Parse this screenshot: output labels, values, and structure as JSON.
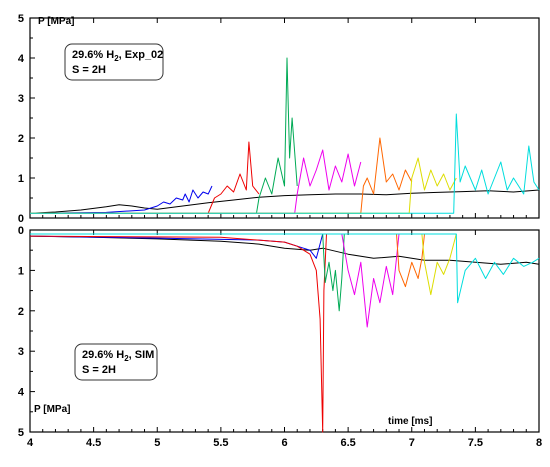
{
  "chart_data": [
    {
      "type": "line",
      "panel": "top",
      "ylabel": "P [MPa]",
      "xlabel": "",
      "xlim": [
        4,
        8
      ],
      "ylim": [
        0,
        5
      ],
      "y_inverted": false,
      "xticks": [
        "4",
        "4.5",
        "5",
        "5.5",
        "6",
        "6.5",
        "7",
        "7.5",
        "8"
      ],
      "yticks": [
        "0",
        "1",
        "2",
        "3",
        "4",
        "5"
      ],
      "annotation": {
        "line1_a": "29.6% H",
        "line1_sub": "2",
        "line1_b": ", Exp_02",
        "line2": "S = 2H"
      },
      "series": [
        {
          "color": "#000000",
          "x": [
            4.0,
            4.2,
            4.4,
            4.6,
            4.7,
            4.8,
            4.9,
            5.0,
            5.2,
            5.4,
            5.6,
            5.8,
            6.0,
            6.2,
            6.4,
            6.6,
            6.8,
            7.0,
            7.2,
            7.4,
            7.6,
            7.8,
            8.0
          ],
          "y": [
            0.12,
            0.15,
            0.2,
            0.28,
            0.33,
            0.3,
            0.25,
            0.22,
            0.3,
            0.38,
            0.45,
            0.52,
            0.56,
            0.58,
            0.6,
            0.6,
            0.58,
            0.62,
            0.64,
            0.66,
            0.68,
            0.65,
            0.7
          ]
        },
        {
          "color": "#0000ee",
          "x": [
            4.0,
            4.6,
            4.9,
            5.0,
            5.05,
            5.1,
            5.15,
            5.2,
            5.22,
            5.25,
            5.28,
            5.32,
            5.36,
            5.4,
            5.43
          ],
          "y": [
            0.12,
            0.14,
            0.2,
            0.3,
            0.4,
            0.35,
            0.5,
            0.45,
            0.6,
            0.4,
            0.7,
            0.5,
            0.65,
            0.6,
            0.8
          ]
        },
        {
          "color": "#ee0000",
          "x": [
            4.0,
            5.4,
            5.45,
            5.5,
            5.55,
            5.6,
            5.65,
            5.7,
            5.72,
            5.75,
            5.8
          ],
          "y": [
            0.12,
            0.12,
            0.5,
            0.6,
            0.8,
            0.65,
            1.1,
            0.7,
            1.9,
            0.8,
            0.6
          ]
        },
        {
          "color": "#00aa55",
          "x": [
            4.0,
            5.78,
            5.8,
            5.85,
            5.9,
            5.95,
            6.0,
            6.02,
            6.04,
            6.06,
            6.1
          ],
          "y": [
            0.12,
            0.12,
            0.5,
            1.0,
            0.6,
            1.5,
            0.8,
            4.0,
            1.5,
            2.5,
            0.8
          ]
        },
        {
          "color": "#ee00ee",
          "x": [
            4.0,
            6.08,
            6.1,
            6.15,
            6.2,
            6.25,
            6.3,
            6.35,
            6.4,
            6.45,
            6.5,
            6.55,
            6.6
          ],
          "y": [
            0.12,
            0.12,
            0.6,
            1.5,
            0.8,
            1.2,
            1.7,
            0.7,
            1.3,
            0.9,
            1.6,
            0.8,
            1.4
          ]
        },
        {
          "color": "#ff6600",
          "x": [
            4.0,
            6.6,
            6.62,
            6.65,
            6.7,
            6.75,
            6.8,
            6.85,
            6.9,
            6.95,
            7.0
          ],
          "y": [
            0.12,
            0.12,
            0.8,
            1.0,
            0.6,
            2.0,
            0.9,
            1.1,
            0.7,
            1.2,
            0.9
          ]
        },
        {
          "color": "#dddd00",
          "x": [
            4.0,
            6.98,
            7.0,
            7.05,
            7.1,
            7.15,
            7.2,
            7.25,
            7.3,
            7.35
          ],
          "y": [
            0.12,
            0.12,
            1.0,
            1.5,
            0.7,
            1.2,
            0.8,
            1.1,
            0.7,
            1.0
          ]
        },
        {
          "color": "#00dddd",
          "x": [
            4.0,
            7.33,
            7.35,
            7.38,
            7.42,
            7.5,
            7.55,
            7.6,
            7.7,
            7.75,
            7.8,
            7.88,
            7.92,
            7.96,
            8.0
          ],
          "y": [
            0.12,
            0.12,
            2.6,
            0.9,
            1.3,
            0.7,
            1.2,
            0.6,
            1.4,
            0.7,
            1.0,
            0.6,
            1.8,
            0.9,
            0.7
          ]
        }
      ]
    },
    {
      "type": "line",
      "panel": "bottom",
      "ylabel": "P [MPa]",
      "xlabel": "time [ms]",
      "xlim": [
        4,
        8
      ],
      "ylim": [
        0,
        5
      ],
      "y_inverted": true,
      "xticks": [
        "4",
        "4.5",
        "5",
        "5.5",
        "6",
        "6.5",
        "7",
        "7.5",
        "8"
      ],
      "yticks": [
        "0",
        "1",
        "2",
        "3",
        "4",
        "5"
      ],
      "annotation": {
        "line1_a": "29.6% H",
        "line1_sub": "2",
        "line1_b": ", SIM",
        "line2": "S = 2H"
      },
      "series": [
        {
          "color": "#000000",
          "x": [
            4.0,
            4.5,
            5.0,
            5.5,
            5.8,
            6.0,
            6.2,
            6.3,
            6.5,
            6.7,
            6.9,
            7.1,
            7.3,
            7.5,
            7.7,
            7.9,
            8.0
          ],
          "y": [
            0.15,
            0.18,
            0.22,
            0.28,
            0.35,
            0.45,
            0.5,
            0.45,
            0.6,
            0.7,
            0.65,
            0.75,
            0.75,
            0.8,
            0.85,
            0.8,
            0.85
          ]
        },
        {
          "color": "#0000ee",
          "x": [
            4.0,
            5.0,
            5.8,
            6.0,
            6.1,
            6.2,
            6.25,
            6.3
          ],
          "y": [
            0.15,
            0.2,
            0.25,
            0.3,
            0.4,
            0.5,
            0.7,
            0.1
          ]
        },
        {
          "color": "#ee0000",
          "x": [
            4.0,
            5.5,
            6.0,
            6.1,
            6.2,
            6.25,
            6.28,
            6.3,
            6.31,
            6.32,
            6.33
          ],
          "y": [
            0.15,
            0.18,
            0.3,
            0.4,
            0.6,
            1.0,
            2.2,
            5.0,
            1.5,
            0.8,
            0.1
          ]
        },
        {
          "color": "#00aa55",
          "x": [
            4.0,
            6.3,
            6.32,
            6.35,
            6.38,
            6.4,
            6.43,
            6.45,
            6.47
          ],
          "y": [
            0.1,
            0.1,
            1.3,
            0.8,
            1.5,
            1.0,
            2.0,
            1.2,
            0.1
          ]
        },
        {
          "color": "#ee00ee",
          "x": [
            4.0,
            6.45,
            6.5,
            6.55,
            6.6,
            6.65,
            6.7,
            6.75,
            6.8,
            6.85,
            6.9
          ],
          "y": [
            0.1,
            0.1,
            1.0,
            1.6,
            0.8,
            2.4,
            1.2,
            1.8,
            0.9,
            1.6,
            0.1
          ]
        },
        {
          "color": "#ff6600",
          "x": [
            4.0,
            6.88,
            6.9,
            6.95,
            7.0,
            7.05,
            7.08,
            7.1
          ],
          "y": [
            0.1,
            0.1,
            1.0,
            1.4,
            0.8,
            1.2,
            0.7,
            0.1
          ]
        },
        {
          "color": "#dddd00",
          "x": [
            4.0,
            7.08,
            7.1,
            7.15,
            7.2,
            7.25,
            7.3,
            7.35
          ],
          "y": [
            0.1,
            0.1,
            0.8,
            1.6,
            0.8,
            1.1,
            0.7,
            0.1
          ]
        },
        {
          "color": "#00dddd",
          "x": [
            4.0,
            7.35,
            7.36,
            7.42,
            7.5,
            7.58,
            7.65,
            7.72,
            7.8,
            7.88,
            7.95,
            8.0
          ],
          "y": [
            0.1,
            0.1,
            1.8,
            1.0,
            0.7,
            1.2,
            0.8,
            1.1,
            0.7,
            0.9,
            0.8,
            0.7
          ]
        }
      ]
    }
  ]
}
